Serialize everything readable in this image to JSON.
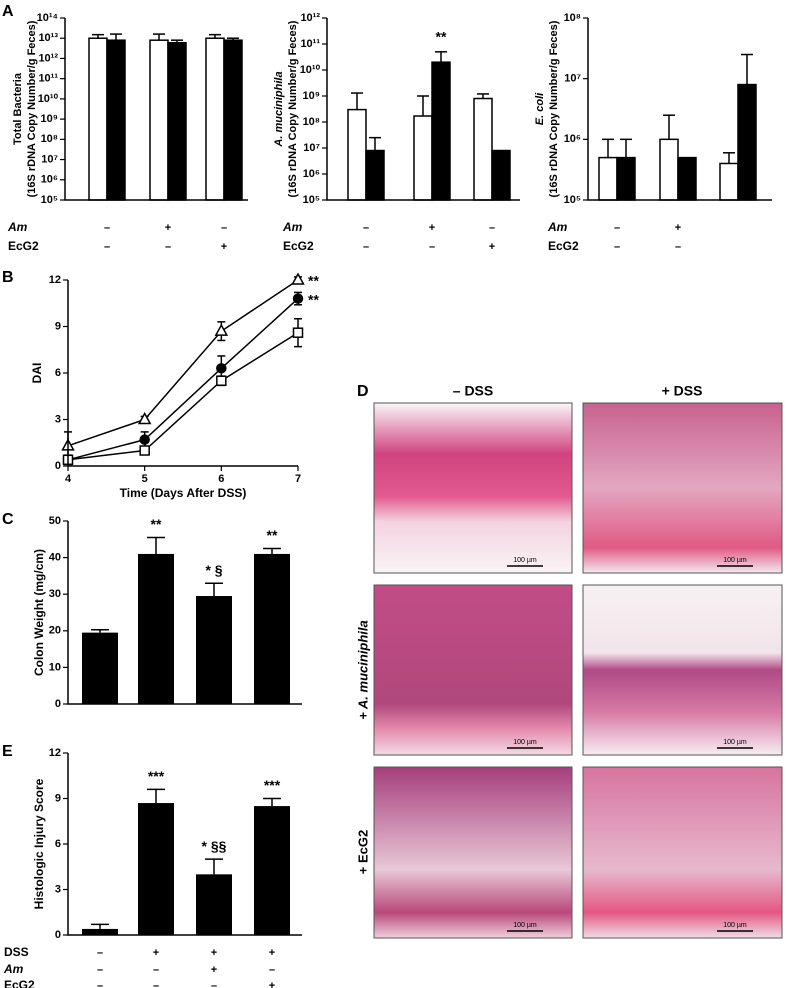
{
  "panel_labels": [
    "A",
    "B",
    "C",
    "D",
    "E"
  ],
  "chart_data": [
    {
      "type": "grouped_bar",
      "log_scale": true,
      "ylabel": [
        "Total Bacteria",
        "(16S rDNA Copy Number/g Feces)"
      ],
      "ylim": [
        100000.0,
        100000000000000.0
      ],
      "yticks": [
        {
          "value": 100000.0,
          "label": "10⁵"
        },
        {
          "value": 1000000.0,
          "label": "10⁶"
        },
        {
          "value": 10000000.0,
          "label": "10⁷"
        },
        {
          "value": 100000000.0,
          "label": "10⁸"
        },
        {
          "value": 1000000000.0,
          "label": "10⁹"
        },
        {
          "value": 10000000000.0,
          "label": "10¹⁰"
        },
        {
          "value": 100000000000.0,
          "label": "10¹¹"
        },
        {
          "value": 1000000000000.0,
          "label": "10¹²"
        },
        {
          "value": 10000000000000.0,
          "label": "10¹³"
        },
        {
          "value": 100000000000000.0,
          "label": "10¹⁴"
        }
      ],
      "series": [
        {
          "color": "#ffffff",
          "values": [
            10000000000000.0,
            8000000000000.0,
            10000000000000.0
          ],
          "errors": [
            5000000000000.0,
            8000000000000.0,
            5000000000000.0
          ]
        },
        {
          "color": "#000000",
          "values": [
            8000000000000.0,
            6000000000000.0,
            8000000000000.0
          ],
          "errors": [
            8000000000000.0,
            2000000000000.0,
            2000000000000.0
          ]
        }
      ],
      "conditions": [
        {
          "label": "Am",
          "values": [
            "–",
            "+",
            "–"
          ]
        },
        {
          "label": "EcG2",
          "values": [
            "–",
            "–",
            "+"
          ]
        }
      ]
    },
    {
      "type": "grouped_bar",
      "log_scale": true,
      "ylabel": [
        "A. muciniphila",
        "(16S rDNA Copy Number/g Feces)"
      ],
      "ylim": [
        100000.0,
        1000000000000.0
      ],
      "yticks": [
        {
          "value": 100000.0,
          "label": "10⁵"
        },
        {
          "value": 1000000.0,
          "label": "10⁶"
        },
        {
          "value": 10000000.0,
          "label": "10⁷"
        },
        {
          "value": 100000000.0,
          "label": "10⁸"
        },
        {
          "value": 1000000000.0,
          "label": "10⁹"
        },
        {
          "value": 10000000000.0,
          "label": "10¹⁰"
        },
        {
          "value": 100000000000.0,
          "label": "10¹¹"
        },
        {
          "value": 1000000000000.0,
          "label": "10¹²"
        }
      ],
      "series": [
        {
          "color": "#ffffff",
          "values": [
            300000000.0,
            170000000.0,
            800000000.0
          ],
          "errors": [
            1000000000.0,
            830000000.0,
            400000000.0
          ]
        },
        {
          "color": "#000000",
          "values": [
            8000000.0,
            20000000000.0,
            8000000.0
          ],
          "errors": [
            17000000.0,
            30000000000.0,
            null
          ],
          "annotations": [
            null,
            "**",
            null
          ]
        }
      ],
      "conditions": [
        {
          "label": "Am",
          "values": [
            "–",
            "+",
            "–"
          ]
        },
        {
          "label": "EcG2",
          "values": [
            "–",
            "–",
            "+"
          ]
        }
      ]
    },
    {
      "type": "grouped_bar",
      "log_scale": true,
      "ylabel": [
        "E. coli",
        "(16S rDNA Copy Number/g Feces)"
      ],
      "ylim": [
        100000.0,
        100000000.0
      ],
      "yticks": [
        {
          "value": 100000.0,
          "label": "10⁵"
        },
        {
          "value": 1000000.0,
          "label": "10⁶"
        },
        {
          "value": 10000000.0,
          "label": "10⁷"
        },
        {
          "value": 100000000.0,
          "label": "10⁸"
        }
      ],
      "series": [
        {
          "color": "#ffffff",
          "values": [
            500000.0,
            1000000.0,
            400000.0
          ],
          "errors": [
            500000.0,
            1500000.0,
            200000.0
          ]
        },
        {
          "color": "#000000",
          "values": [
            500000.0,
            500000.0,
            8000000.0
          ],
          "errors": [
            500000.0,
            null,
            17000000.0
          ]
        }
      ],
      "conditions": [
        {
          "label": "Am",
          "values": [
            "–",
            "+",
            null
          ]
        },
        {
          "label": "EcG2",
          "values": [
            "–",
            "–",
            null
          ]
        }
      ]
    },
    {
      "type": "line",
      "ylabel": [
        "DAI"
      ],
      "xlabel": "Time (Days After DSS)",
      "x": [
        4,
        5,
        6,
        7
      ],
      "xlim": [
        4,
        7
      ],
      "xticks": [
        4,
        5,
        6,
        7
      ],
      "ylim": [
        0,
        12
      ],
      "yticks": [
        0,
        3,
        6,
        9,
        12
      ],
      "series": [
        {
          "marker": "triangle",
          "color": "#ffffff",
          "values": [
            1.3,
            3.0,
            8.7,
            12.0
          ],
          "errors": [
            0.9,
            0.2,
            0.6,
            0.2
          ],
          "end_label": "**"
        },
        {
          "marker": "circle",
          "color": "#000000",
          "values": [
            0.4,
            1.7,
            6.3,
            10.8
          ],
          "errors": [
            0.3,
            0.5,
            0.8,
            0.4
          ],
          "end_label": "**"
        },
        {
          "marker": "square",
          "color": "#ffffff",
          "values": [
            0.4,
            1.0,
            5.5,
            8.6
          ],
          "errors": [
            0.2,
            0.2,
            0.3,
            0.9
          ]
        }
      ]
    },
    {
      "type": "bar",
      "color": "#000000",
      "ylabel": [
        "Colon Weight (mg/cm)"
      ],
      "ylim": [
        0,
        50
      ],
      "yticks": [
        0,
        10,
        20,
        30,
        40,
        50
      ],
      "values": [
        19.5,
        41,
        29.5,
        41
      ],
      "errors": [
        0.8,
        4.5,
        3.5,
        1.5
      ],
      "annotations": [
        null,
        "**",
        "* §",
        "**"
      ]
    },
    {
      "type": "bar",
      "color": "#000000",
      "ylabel": [
        "Histologic Injury Score"
      ],
      "ylim": [
        0,
        12
      ],
      "yticks": [
        0,
        3,
        6,
        9,
        12
      ],
      "values": [
        0.4,
        8.7,
        4.0,
        8.5
      ],
      "errors": [
        0.3,
        0.9,
        1.0,
        0.5
      ],
      "annotations": [
        null,
        "***",
        "* §§",
        "***"
      ],
      "conditions": [
        {
          "label": "DSS",
          "values": [
            "–",
            "+",
            "+",
            "+"
          ]
        },
        {
          "label": "Am",
          "values": [
            "–",
            "–",
            "+",
            "–"
          ]
        },
        {
          "label": "EcG2",
          "values": [
            "–",
            "–",
            "–",
            "+"
          ]
        }
      ]
    }
  ],
  "panel_d": {
    "columns": [
      "– DSS",
      "+ DSS"
    ],
    "rows": [
      "+ A. muciniphila",
      "+ EcG2"
    ],
    "scale_bars": [
      "100 µm",
      "100 µm",
      "100 µm",
      "100 µm",
      "100 µm",
      "100 µm"
    ]
  }
}
